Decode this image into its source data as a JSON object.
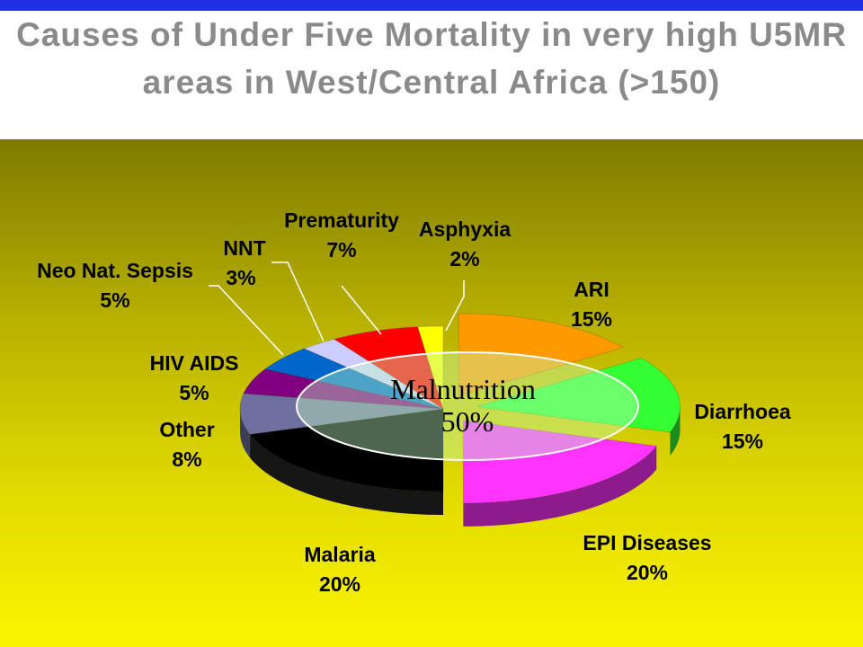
{
  "slide": {
    "title": "Causes of Under Five Mortality in very high U5MR areas in West/Central Africa (>150)"
  },
  "colors": {
    "top_bar": "#1f30e6",
    "background_top": "#7f7a00",
    "background_bottom": "#fbf500"
  },
  "chart_data": {
    "type": "pie",
    "title": "Causes of Under Five Mortality in very high U5MR areas in West/Central Africa (>150)",
    "three_d": true,
    "slices": [
      {
        "label": "ARI",
        "percent_text": "15%",
        "value": 15,
        "color": "#ff9900",
        "exploded": true
      },
      {
        "label": "Diarrhoea",
        "percent_text": "15%",
        "value": 15,
        "color": "#33ff33",
        "exploded": true
      },
      {
        "label": "EPI Diseases",
        "percent_text": "20%",
        "value": 20,
        "color": "#ff33ff",
        "exploded": true
      },
      {
        "label": "Malaria",
        "percent_text": "20%",
        "value": 20,
        "color": "#000000",
        "exploded": false
      },
      {
        "label": "Other",
        "percent_text": "8%",
        "value": 8,
        "color": "#7070a0",
        "exploded": false
      },
      {
        "label": "HIV AIDS",
        "percent_text": "5%",
        "value": 5,
        "color": "#800080",
        "exploded": false
      },
      {
        "label": "Neo Nat. Sepsis",
        "percent_text": "5%",
        "value": 5,
        "color": "#0066cc",
        "exploded": false
      },
      {
        "label": "NNT",
        "percent_text": "3%",
        "value": 3,
        "color": "#ccccff",
        "exploded": false
      },
      {
        "label": "Prematurity",
        "percent_text": "7%",
        "value": 7,
        "color": "#ff0000",
        "exploded": false
      },
      {
        "label": "Asphyxia",
        "percent_text": "2%",
        "value": 2,
        "color": "#ffff00",
        "exploded": false
      }
    ],
    "overlay": {
      "label": "Malnutrition",
      "percent_text": "50%",
      "value": 50,
      "color": "#c0ffc0"
    }
  }
}
